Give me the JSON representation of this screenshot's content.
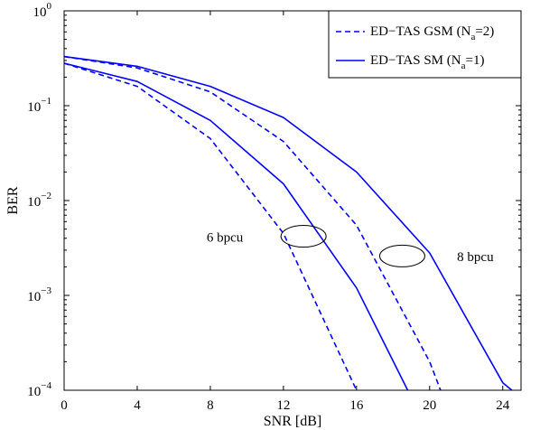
{
  "chart_data": {
    "type": "line",
    "xlabel": "SNR [dB]",
    "ylabel": "BER",
    "xlim": [
      0,
      25
    ],
    "ylim": [
      0.0001,
      1
    ],
    "yscale": "log",
    "xticks": [
      0,
      4,
      8,
      12,
      16,
      20,
      24
    ],
    "yticks": [
      {
        "value": 1,
        "base": "10",
        "exp": "0"
      },
      {
        "value": 0.1,
        "base": "10",
        "exp": "−1"
      },
      {
        "value": 0.01,
        "base": "10",
        "exp": "−2"
      },
      {
        "value": 0.001,
        "base": "10",
        "exp": "−3"
      },
      {
        "value": 0.0001,
        "base": "10",
        "exp": "−4"
      }
    ],
    "grid": false,
    "legend_position": "top-right",
    "legend": [
      {
        "text": "ED−TAS GSM (N",
        "sub": "a",
        "tail": "=2)",
        "style": "dashed"
      },
      {
        "text": "ED−TAS SM (N",
        "sub": "a",
        "tail": "=1)",
        "style": "solid"
      }
    ],
    "series": [
      {
        "style": "dashed",
        "color": "#0000ff",
        "x": [
          0,
          4,
          8,
          12,
          16
        ],
        "y": [
          0.28,
          0.16,
          0.045,
          0.0045,
          0.0001
        ]
      },
      {
        "style": "solid",
        "color": "#0000ff",
        "x": [
          0,
          4,
          8,
          12,
          16,
          18.8
        ],
        "y": [
          0.28,
          0.18,
          0.07,
          0.015,
          0.0012,
          0.0001
        ]
      },
      {
        "style": "dashed",
        "color": "#0000ff",
        "x": [
          0,
          4,
          8,
          12,
          16,
          20,
          20.6
        ],
        "y": [
          0.33,
          0.25,
          0.14,
          0.042,
          0.0055,
          0.0002,
          0.0001
        ]
      },
      {
        "style": "solid",
        "color": "#0000ff",
        "x": [
          0,
          4,
          8,
          12,
          16,
          20,
          24,
          24.5
        ],
        "y": [
          0.33,
          0.26,
          0.16,
          0.075,
          0.02,
          0.0028,
          0.00012,
          0.0001
        ]
      }
    ],
    "annotations": [
      {
        "label": "6 bpcu",
        "ellipse_center": [
          13.1,
          0.0042
        ],
        "label_pos": [
          7.8,
          0.0037
        ]
      },
      {
        "label": "8 bpcu",
        "ellipse_center": [
          18.5,
          0.0026
        ],
        "label_pos": [
          21.5,
          0.0023
        ]
      }
    ]
  }
}
